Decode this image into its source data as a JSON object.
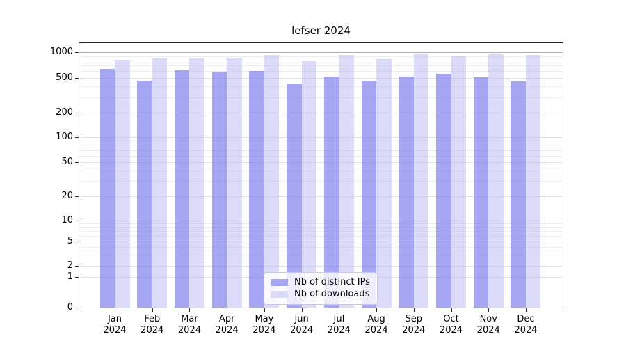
{
  "title": "lefser 2024",
  "legend": {
    "items": [
      {
        "label": "Nb of distinct IPs"
      },
      {
        "label": "Nb of downloads"
      }
    ]
  },
  "chart_data": {
    "type": "bar",
    "title": "lefser 2024",
    "categories": [
      "Jan 2024",
      "Feb 2024",
      "Mar 2024",
      "Apr 2024",
      "May 2024",
      "Jun 2024",
      "Jul 2024",
      "Aug 2024",
      "Sep 2024",
      "Oct 2024",
      "Nov 2024",
      "Dec 2024"
    ],
    "x_tick_month": [
      "Jan",
      "Feb",
      "Mar",
      "Apr",
      "May",
      "Jun",
      "Jul",
      "Aug",
      "Sep",
      "Oct",
      "Nov",
      "Dec"
    ],
    "x_tick_year": "2024",
    "series": [
      {
        "name": "Nb of distinct IPs",
        "color": "#a6a6f3",
        "values": [
          630,
          465,
          610,
          585,
          595,
          430,
          520,
          460,
          520,
          555,
          510,
          455
        ]
      },
      {
        "name": "Nb of downloads",
        "color": "#dbdbf9",
        "values": [
          815,
          845,
          855,
          860,
          920,
          780,
          920,
          825,
          955,
          900,
          940,
          920
        ]
      }
    ],
    "y_scale": "symlog",
    "y_ticks": [
      0,
      1,
      2,
      5,
      10,
      20,
      50,
      100,
      200,
      500,
      1000
    ],
    "y_minor_gridlines": [
      3,
      4,
      6,
      7,
      8,
      9,
      30,
      40,
      60,
      70,
      80,
      90,
      300,
      400,
      600,
      700,
      800,
      900
    ],
    "ylim": [
      0,
      1150
    ],
    "grid": true,
    "legend_position": "lower center",
    "colors": {
      "bar_distinct_ips": "#a6a6f3",
      "bar_downloads": "#dbdbf9",
      "grid_minor": "#ececec",
      "grid_major": "#e2e2e2",
      "grid_line_1000": "#b0b0b0",
      "axis": "#262626",
      "text": "#000000"
    }
  }
}
